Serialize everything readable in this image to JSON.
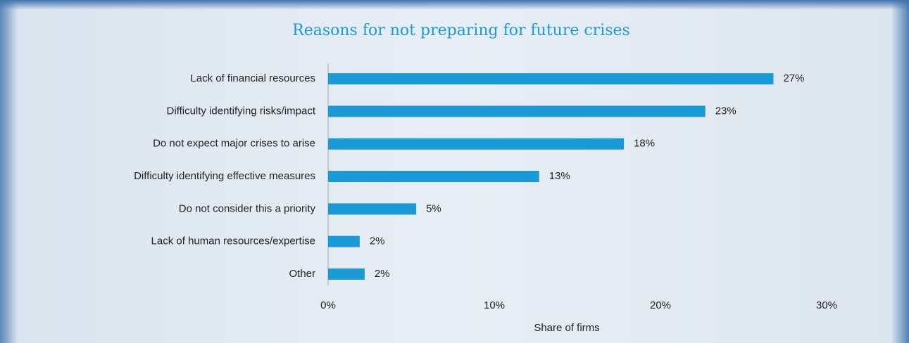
{
  "chart_data": {
    "type": "barh",
    "title": "Reasons for not preparing for future crises",
    "categories": [
      "Lack of financial resources",
      "Difficulty identifying risks/impact",
      "Do not expect major crises to arise",
      "Difficulty identifying effective measures",
      "Do not consider this a priority",
      "Lack of human resources/expertise",
      "Other"
    ],
    "values": [
      26.8,
      22.7,
      17.8,
      12.7,
      5.3,
      1.9,
      2.2
    ],
    "value_labels": [
      "27%",
      "23%",
      "18%",
      "13%",
      "5%",
      "2%",
      "2%"
    ],
    "color": "#1a9ad6",
    "xlim": [
      0,
      33
    ],
    "xticks": [
      {
        "value": 0,
        "label": "0%"
      },
      {
        "value": 10,
        "label": "10%"
      },
      {
        "value": 20,
        "label": "20%"
      },
      {
        "value": 30,
        "label": "30%"
      }
    ],
    "xlabel": "Share of firms",
    "grid": false
  }
}
